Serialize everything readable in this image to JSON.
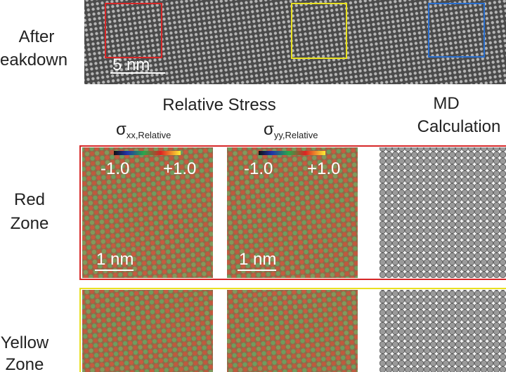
{
  "top_row": {
    "label": [
      "After",
      "eakdown"
    ],
    "scale_bar": "5 nm"
  },
  "column_headers": {
    "relative_stress": "Relative Stress",
    "sigma_xx": {
      "symbol": "σ",
      "subscript": "xx,Relative"
    },
    "sigma_yy": {
      "symbol": "σ",
      "subscript": "yy,Relative"
    },
    "md": [
      "MD",
      "Calculation"
    ]
  },
  "colorbar": {
    "min": "-1.0",
    "max": "+1.0"
  },
  "rows": [
    {
      "label": [
        "Red",
        "Zone"
      ],
      "scale_bar": "1 nm"
    },
    {
      "label": [
        "Yellow",
        "Zone"
      ]
    }
  ]
}
